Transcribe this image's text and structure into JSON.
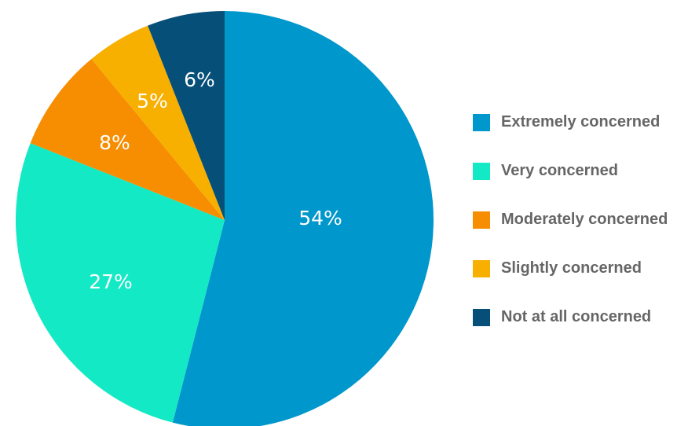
{
  "chart_data": {
    "type": "pie",
    "categories": [
      "Extremely concerned",
      "Very concerned",
      "Moderately concerned",
      "Slightly concerned",
      "Not at all concerned"
    ],
    "values": [
      54,
      27,
      8,
      5,
      6
    ],
    "value_labels": [
      "54%",
      "27%",
      "8%",
      "5%",
      "6%"
    ],
    "colors": [
      "#0097cc",
      "#14e9c5",
      "#f78d00",
      "#f7b000",
      "#064f78"
    ],
    "legend": "right",
    "start": "top",
    "direction": "clockwise"
  }
}
